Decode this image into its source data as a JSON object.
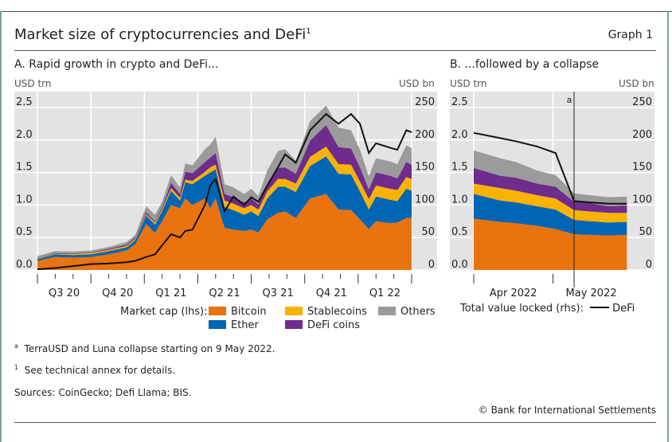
{
  "header": {
    "title": "Market size of cryptocurrencies and DeFi",
    "title_sup": "1",
    "graph_label": "Graph 1"
  },
  "colors": {
    "Bitcoin": "#E8730F",
    "Ether": "#0066B3",
    "Stablecoins": "#F9B200",
    "DeFi coins": "#6E2C8C",
    "Others": "#9B9B9B",
    "DeFi": "#111111",
    "plot_bg": "#E3E3E3"
  },
  "legend": {
    "market_cap_label": "Market cap (lhs):",
    "tvl_label": "Total value locked (rhs):",
    "items": [
      "Bitcoin",
      "Ether",
      "Stablecoins",
      "DeFi coins",
      "Others"
    ],
    "line_item": "DeFi"
  },
  "notes": {
    "a": "TerraUSD and Luna collapse starting on 9 May 2022.",
    "a_mark": "a",
    "one": "See technical annex for details.",
    "one_mark": "1",
    "sources": "Sources: CoinGecko; Defi Llama; BIS.",
    "copyright": "© Bank for International Settlements"
  },
  "chart_data": [
    {
      "type": "area",
      "stacked": true,
      "title": "A. Rapid growth in crypto and DeFi...",
      "ylabel_left": "USD trn",
      "ylabel_right": "USD bn",
      "ylim_left": [
        0,
        2.5
      ],
      "ylim_right": [
        0,
        250
      ],
      "yticks_left": [
        "0.0",
        "0.5",
        "1.0",
        "1.5",
        "2.0",
        "2.5"
      ],
      "yticks_right": [
        "0",
        "50",
        "100",
        "150",
        "200",
        "250"
      ],
      "x_unit": "months since Jul 2020",
      "xlim": [
        0,
        21
      ],
      "xtick_labels": [
        "Q3 20",
        "Q4 20",
        "Q1 21",
        "Q2 21",
        "Q3 21",
        "Q4 21",
        "Q1 22"
      ],
      "x": [
        0,
        1,
        2,
        3,
        4,
        5,
        5.5,
        6.1,
        6.6,
        7,
        7.5,
        8,
        8.3,
        8.7,
        9.4,
        9.7,
        10,
        10.5,
        11,
        11.6,
        12,
        12.4,
        12.9,
        13.5,
        13.9,
        14.5,
        15.3,
        16.2,
        16.9,
        17.6,
        18.1,
        18.6,
        19,
        19.8,
        20.2,
        20.7,
        21
      ],
      "series": [
        {
          "name": "Bitcoin",
          "values": [
            0.14,
            0.2,
            0.19,
            0.2,
            0.24,
            0.3,
            0.4,
            0.71,
            0.57,
            0.75,
            1.0,
            0.95,
            1.1,
            1.0,
            1.1,
            0.95,
            1.1,
            0.65,
            0.62,
            0.6,
            0.62,
            0.58,
            0.78,
            0.88,
            0.9,
            0.8,
            1.1,
            1.17,
            0.93,
            0.92,
            0.78,
            0.63,
            0.75,
            0.72,
            0.73,
            0.8,
            0.8
          ]
        },
        {
          "name": "Ether",
          "values": [
            0.03,
            0.04,
            0.04,
            0.04,
            0.05,
            0.05,
            0.06,
            0.13,
            0.13,
            0.16,
            0.22,
            0.12,
            0.25,
            0.32,
            0.35,
            0.55,
            0.45,
            0.32,
            0.3,
            0.25,
            0.28,
            0.25,
            0.32,
            0.4,
            0.38,
            0.4,
            0.5,
            0.58,
            0.55,
            0.55,
            0.43,
            0.3,
            0.38,
            0.36,
            0.33,
            0.45,
            0.42
          ]
        },
        {
          "name": "Stablecoins",
          "values": [
            0.01,
            0.01,
            0.015,
            0.02,
            0.02,
            0.02,
            0.02,
            0.02,
            0.03,
            0.03,
            0.04,
            0.04,
            0.04,
            0.05,
            0.06,
            0.08,
            0.07,
            0.1,
            0.1,
            0.1,
            0.1,
            0.1,
            0.11,
            0.12,
            0.12,
            0.13,
            0.14,
            0.15,
            0.15,
            0.15,
            0.15,
            0.16,
            0.17,
            0.17,
            0.17,
            0.18,
            0.18
          ]
        },
        {
          "name": "DeFi coins",
          "values": [
            0.005,
            0.01,
            0.01,
            0.01,
            0.015,
            0.02,
            0.02,
            0.03,
            0.02,
            0.03,
            0.08,
            0.06,
            0.12,
            0.12,
            0.15,
            0.15,
            0.18,
            0.1,
            0.1,
            0.09,
            0.1,
            0.08,
            0.12,
            0.17,
            0.18,
            0.15,
            0.25,
            0.33,
            0.26,
            0.25,
            0.22,
            0.15,
            0.2,
            0.2,
            0.18,
            0.23,
            0.22
          ]
        },
        {
          "name": "Others",
          "values": [
            0.03,
            0.03,
            0.03,
            0.03,
            0.03,
            0.04,
            0.04,
            0.09,
            0.1,
            0.08,
            0.12,
            0.1,
            0.13,
            0.12,
            0.2,
            0.2,
            0.25,
            0.15,
            0.15,
            0.13,
            0.15,
            0.13,
            0.2,
            0.26,
            0.28,
            0.2,
            0.3,
            0.3,
            0.3,
            0.28,
            0.27,
            0.2,
            0.22,
            0.22,
            0.22,
            0.26,
            0.25
          ]
        }
      ],
      "line": {
        "name": "DeFi",
        "axis": "right",
        "values": [
          1,
          3,
          6,
          9,
          10,
          12,
          14,
          20,
          24,
          38,
          55,
          50,
          60,
          62,
          100,
          130,
          140,
          90,
          113,
          100,
          112,
          105,
          130,
          158,
          178,
          165,
          215,
          240,
          225,
          240,
          225,
          180,
          195,
          188,
          185,
          215,
          212
        ]
      }
    },
    {
      "type": "area",
      "stacked": true,
      "title": "B. ...followed by a collapse",
      "ylabel_left": "USD trn",
      "ylabel_right": "USD bn",
      "ylim_left": [
        0,
        2.5
      ],
      "ylim_right": [
        0,
        250
      ],
      "yticks_left": [
        "0.0",
        "0.5",
        "1.0",
        "1.5",
        "2.0",
        "2.5"
      ],
      "yticks_right": [
        "0",
        "50",
        "100",
        "150",
        "200",
        "250"
      ],
      "x_unit": "days since 1 Apr 2022",
      "xlim": [
        0,
        58.5
      ],
      "xtick_labels": [
        "Apr 2022",
        "May 2022"
      ],
      "annotation": {
        "label": "a",
        "x": 38
      },
      "x": [
        0,
        10,
        16,
        24,
        31,
        38,
        44,
        51,
        58
      ],
      "series": [
        {
          "name": "Bitcoin",
          "values": [
            0.79,
            0.74,
            0.72,
            0.68,
            0.63,
            0.55,
            0.54,
            0.53,
            0.54
          ]
        },
        {
          "name": "Ether",
          "values": [
            0.38,
            0.33,
            0.32,
            0.3,
            0.3,
            0.22,
            0.21,
            0.2,
            0.2
          ]
        },
        {
          "name": "Stablecoins",
          "values": [
            0.16,
            0.19,
            0.18,
            0.17,
            0.17,
            0.15,
            0.15,
            0.15,
            0.14
          ]
        },
        {
          "name": "DeFi coins",
          "values": [
            0.24,
            0.19,
            0.2,
            0.18,
            0.18,
            0.13,
            0.13,
            0.1,
            0.11
          ]
        },
        {
          "name": "Others",
          "values": [
            0.27,
            0.27,
            0.24,
            0.2,
            0.18,
            0.13,
            0.12,
            0.14,
            0.14
          ]
        }
      ],
      "line": {
        "name": "DeFi",
        "axis": "right",
        "values": [
          211,
          203,
          198,
          190,
          180,
          106,
          104,
          102,
          102
        ]
      }
    }
  ]
}
